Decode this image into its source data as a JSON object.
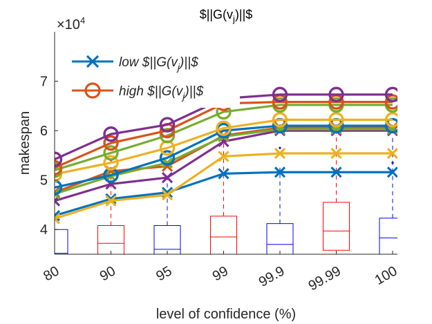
{
  "chart_data": {
    "type": "line",
    "title": "$||G(v",
    "title_sub": "j",
    "title_tail": ")||$",
    "xlabel": "level of confidence (%)",
    "ylabel": "makespan",
    "y_exponent_label": "×10",
    "y_exponent_power": "4",
    "categories": [
      "80",
      "90",
      "95",
      "99",
      "99.9",
      "99.99",
      "100"
    ],
    "ylim": [
      3.5,
      8.0
    ],
    "yticks": [
      {
        "value": 4,
        "label": "4"
      },
      {
        "value": 5,
        "label": "5"
      },
      {
        "value": 6,
        "label": "6"
      },
      {
        "value": 7,
        "label": "7"
      }
    ],
    "grid": false,
    "legend": {
      "location": "top-left",
      "entries": [
        {
          "marker": "x",
          "color": "#0072BD",
          "text": "low $||G(v",
          "sub": "j",
          "tail": ")||$"
        },
        {
          "marker": "o",
          "color": "#D95319",
          "text": "high $||G(v",
          "sub": "j",
          "tail": ")||$"
        }
      ]
    },
    "series": [
      {
        "marker": "x",
        "color": "#0072BD",
        "values": [
          4.28,
          4.62,
          4.75,
          5.13,
          5.16,
          5.16,
          5.16
        ]
      },
      {
        "marker": "x",
        "color": "#EDB120",
        "values": [
          4.22,
          4.58,
          4.7,
          5.48,
          5.54,
          5.54,
          5.54
        ]
      },
      {
        "marker": "x",
        "color": "#7E2F8E",
        "values": [
          4.58,
          4.92,
          5.05,
          5.78,
          6.0,
          6.0,
          6.0
        ]
      },
      {
        "marker": "x",
        "color": "#D95319",
        "values": [
          4.75,
          5.18,
          5.28,
          5.9,
          6.06,
          6.06,
          6.06
        ]
      },
      {
        "marker": "x",
        "color": "#77AC30",
        "values": [
          4.72,
          5.08,
          5.35,
          5.88,
          6.03,
          6.03,
          6.03
        ]
      },
      {
        "marker": "o",
        "color": "#0072BD",
        "values": [
          4.85,
          5.1,
          5.45,
          6.0,
          6.1,
          6.1,
          6.1
        ]
      },
      {
        "marker": "o",
        "color": "#EDB120",
        "values": [
          5.12,
          5.35,
          5.65,
          6.05,
          6.22,
          6.22,
          6.22
        ]
      },
      {
        "marker": "o",
        "color": "#77AC30",
        "values": [
          5.2,
          5.55,
          5.9,
          6.38,
          6.52,
          6.52,
          6.52
        ]
      },
      {
        "marker": "o",
        "color": "#D95319",
        "values": [
          5.25,
          5.75,
          6.0,
          6.55,
          6.58,
          6.58,
          6.58
        ]
      },
      {
        "marker": "o",
        "color": "#7E2F8E",
        "values": [
          5.42,
          5.93,
          6.12,
          6.65,
          6.73,
          6.73,
          6.73
        ]
      }
    ],
    "boxplots": [
      {
        "category": "80",
        "color": "#0000FF",
        "q1": 3.5,
        "median": 3.52,
        "q3": 4.0,
        "whisker_high": 4.0,
        "outliers": []
      },
      {
        "category": "90",
        "color": "#FF0000",
        "q1": 3.5,
        "median": 3.72,
        "q3": 4.08,
        "whisker_high": 5.05,
        "outliers": [
          5.4
        ]
      },
      {
        "category": "95",
        "color": "#0000FF",
        "q1": 3.5,
        "median": 3.6,
        "q3": 4.08,
        "whisker_high": 5.15,
        "outliers": [
          6.55
        ]
      },
      {
        "category": "99",
        "color": "#FF0000",
        "q1": 3.5,
        "median": 3.85,
        "q3": 4.27,
        "whisker_high": 5.9,
        "outliers": []
      },
      {
        "category": "99.9",
        "color": "#0000FF",
        "q1": 3.5,
        "median": 3.7,
        "q3": 4.12,
        "whisker_high": 5.25,
        "outliers": [
          5.65
        ]
      },
      {
        "category": "99.99",
        "color": "#FF0000",
        "q1": 3.58,
        "median": 3.97,
        "q3": 4.55,
        "whisker_high": 5.95,
        "outliers": []
      },
      {
        "category": "100",
        "color": "#0000FF",
        "q1": 3.5,
        "median": 3.83,
        "q3": 4.23,
        "whisker_high": 5.9,
        "outliers": [
          5.35
        ]
      }
    ]
  }
}
